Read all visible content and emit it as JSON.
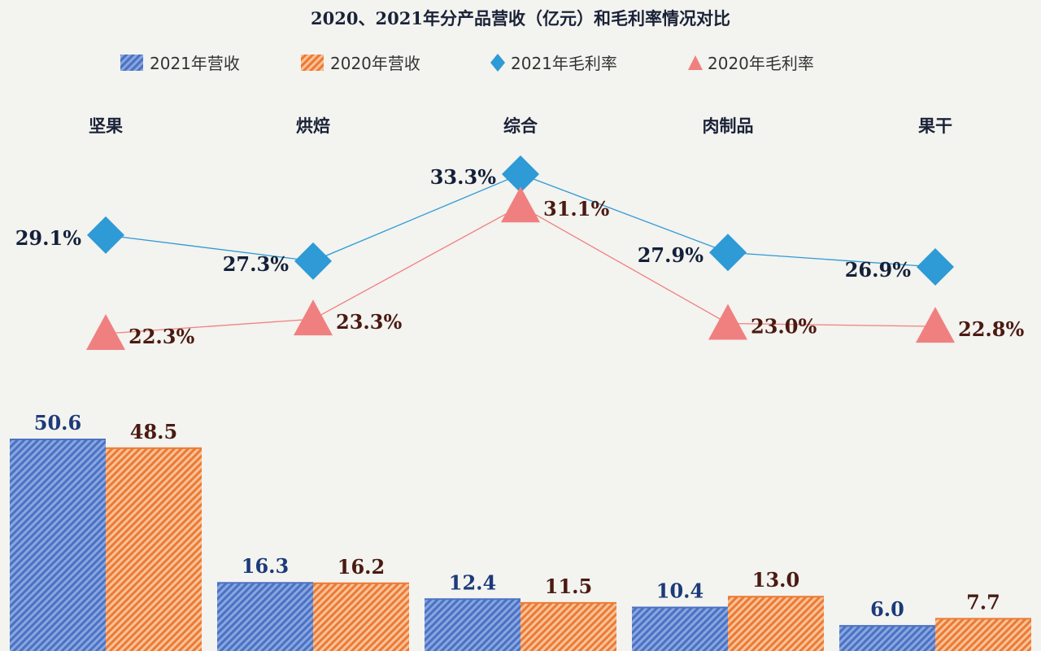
{
  "chart_data": {
    "type": "bar",
    "title": "2020、2021年分产品营收（亿元）和毛利率情况对比",
    "categories": [
      "坚果",
      "烘焙",
      "综合",
      "肉制品",
      "果干"
    ],
    "revenue_series": [
      {
        "name": "2021年营收",
        "values": [
          50.6,
          16.3,
          12.4,
          10.4,
          6.0
        ],
        "color": "#4a72c4"
      },
      {
        "name": "2020年营收",
        "values": [
          48.5,
          16.2,
          11.5,
          13.0,
          7.7
        ],
        "color": "#f08a3c"
      }
    ],
    "margin_series": [
      {
        "name": "2021年毛利率",
        "type": "line",
        "values": [
          29.1,
          27.3,
          33.3,
          27.9,
          26.9
        ],
        "color": "#2e9ad6",
        "marker": "diamond"
      },
      {
        "name": "2020年毛利率",
        "type": "line",
        "values": [
          22.3,
          23.3,
          31.1,
          23.0,
          22.8
        ],
        "color": "#f08080",
        "marker": "triangle"
      }
    ],
    "revenue_labels_2021": [
      "50.6",
      "16.3",
      "12.4",
      "10.4",
      "6.0"
    ],
    "revenue_labels_2020": [
      "48.5",
      "16.2",
      "11.5",
      "13.0",
      "7.7"
    ],
    "margin_labels_2021": [
      "29.1%",
      "27.3%",
      "33.3%",
      "27.9%",
      "26.9%"
    ],
    "margin_labels_2020": [
      "22.3%",
      "23.3%",
      "31.1%",
      "23.0%",
      "22.8%"
    ],
    "legend_position": "top"
  }
}
